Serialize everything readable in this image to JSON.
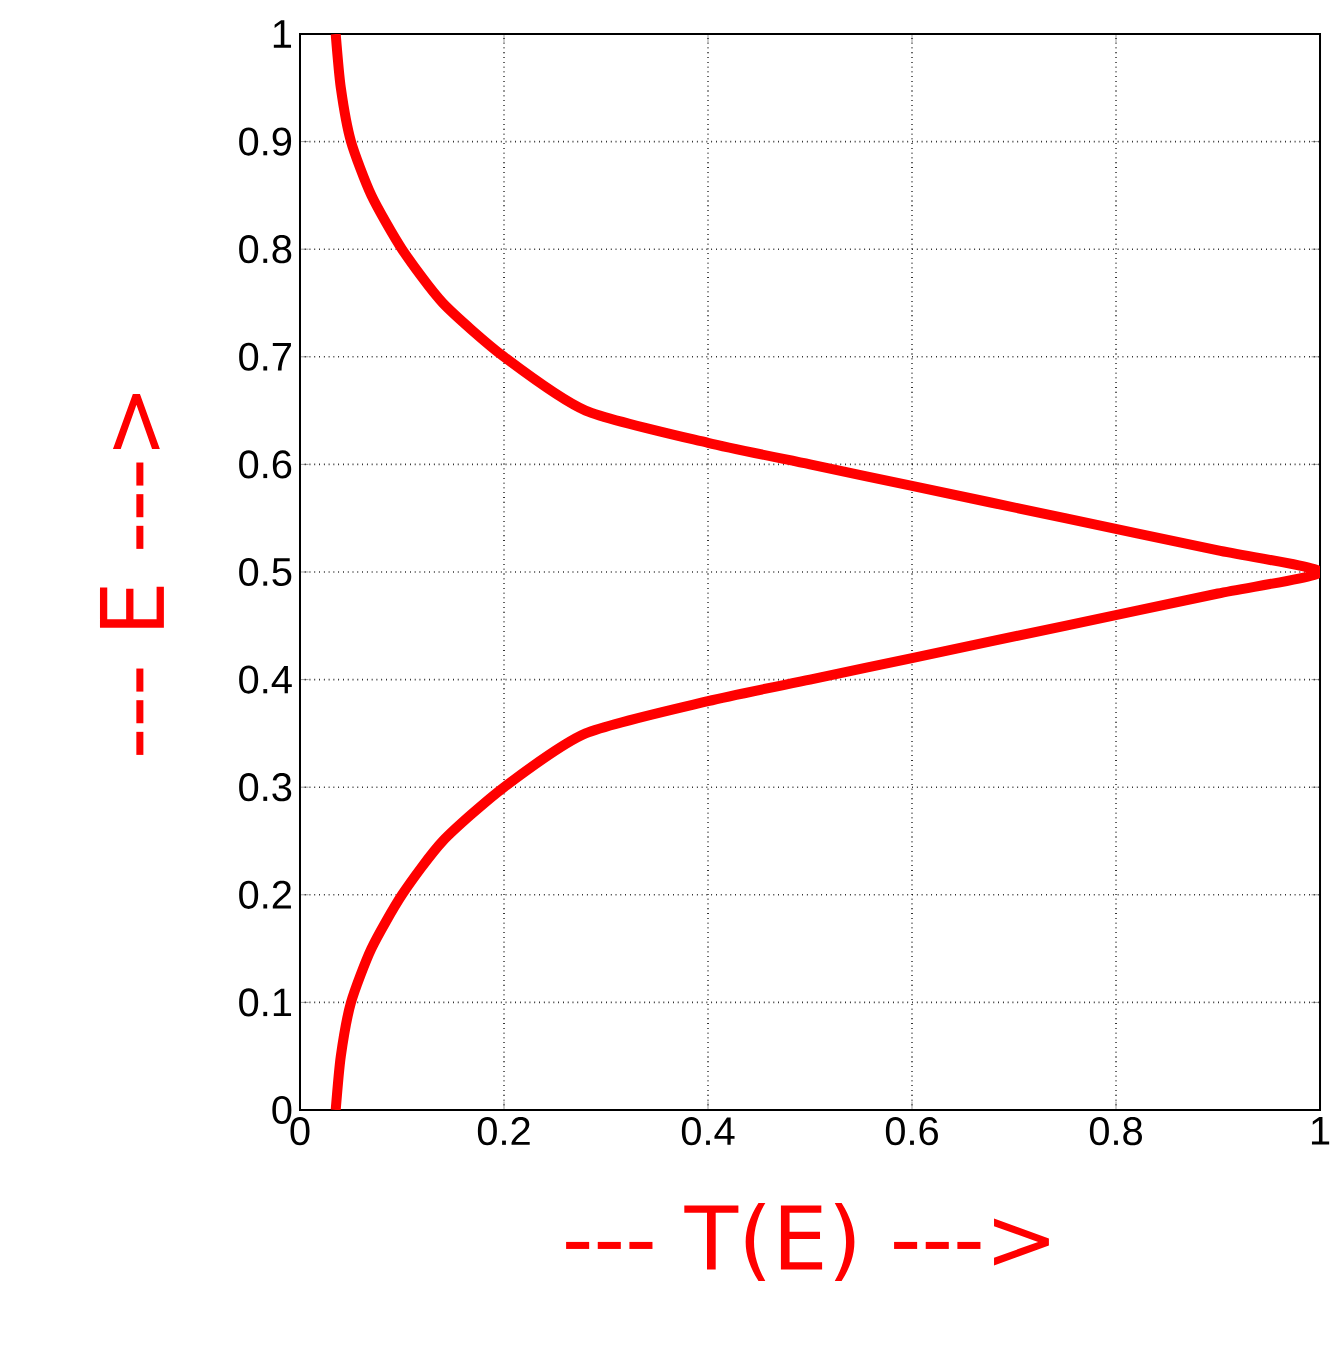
{
  "chart_data": {
    "type": "line",
    "xlabel": "---  T(E)  --->",
    "ylabel": "---  E  --->",
    "series": [
      {
        "color": "#ff0000",
        "x": [
          0.035,
          0.04,
          0.05,
          0.07,
          0.1,
          0.14,
          0.2,
          0.28,
          0.4,
          0.5,
          0.6,
          0.75,
          0.9,
          1,
          0.9,
          0.75,
          0.6,
          0.5,
          0.4,
          0.28,
          0.2,
          0.14,
          0.1,
          0.07,
          0.05,
          0.04,
          0.035
        ],
        "values": [
          0,
          0.05,
          0.1,
          0.15,
          0.2,
          0.25,
          0.3,
          0.35,
          0.38,
          0.4,
          0.42,
          0.45,
          0.48,
          0.5,
          0.52,
          0.55,
          0.58,
          0.6,
          0.62,
          0.65,
          0.7,
          0.75,
          0.8,
          0.85,
          0.9,
          0.95,
          1
        ]
      }
    ],
    "xlim": [
      0,
      1
    ],
    "ylim": [
      0,
      1
    ],
    "xticks": [
      0,
      0.2,
      0.4,
      0.6,
      0.8,
      1
    ],
    "yticks": [
      0,
      0.1,
      0.2,
      0.3,
      0.4,
      0.5,
      0.6,
      0.7,
      0.8,
      0.9,
      1
    ],
    "grid": true,
    "marker": "none",
    "line_style": "solid"
  }
}
